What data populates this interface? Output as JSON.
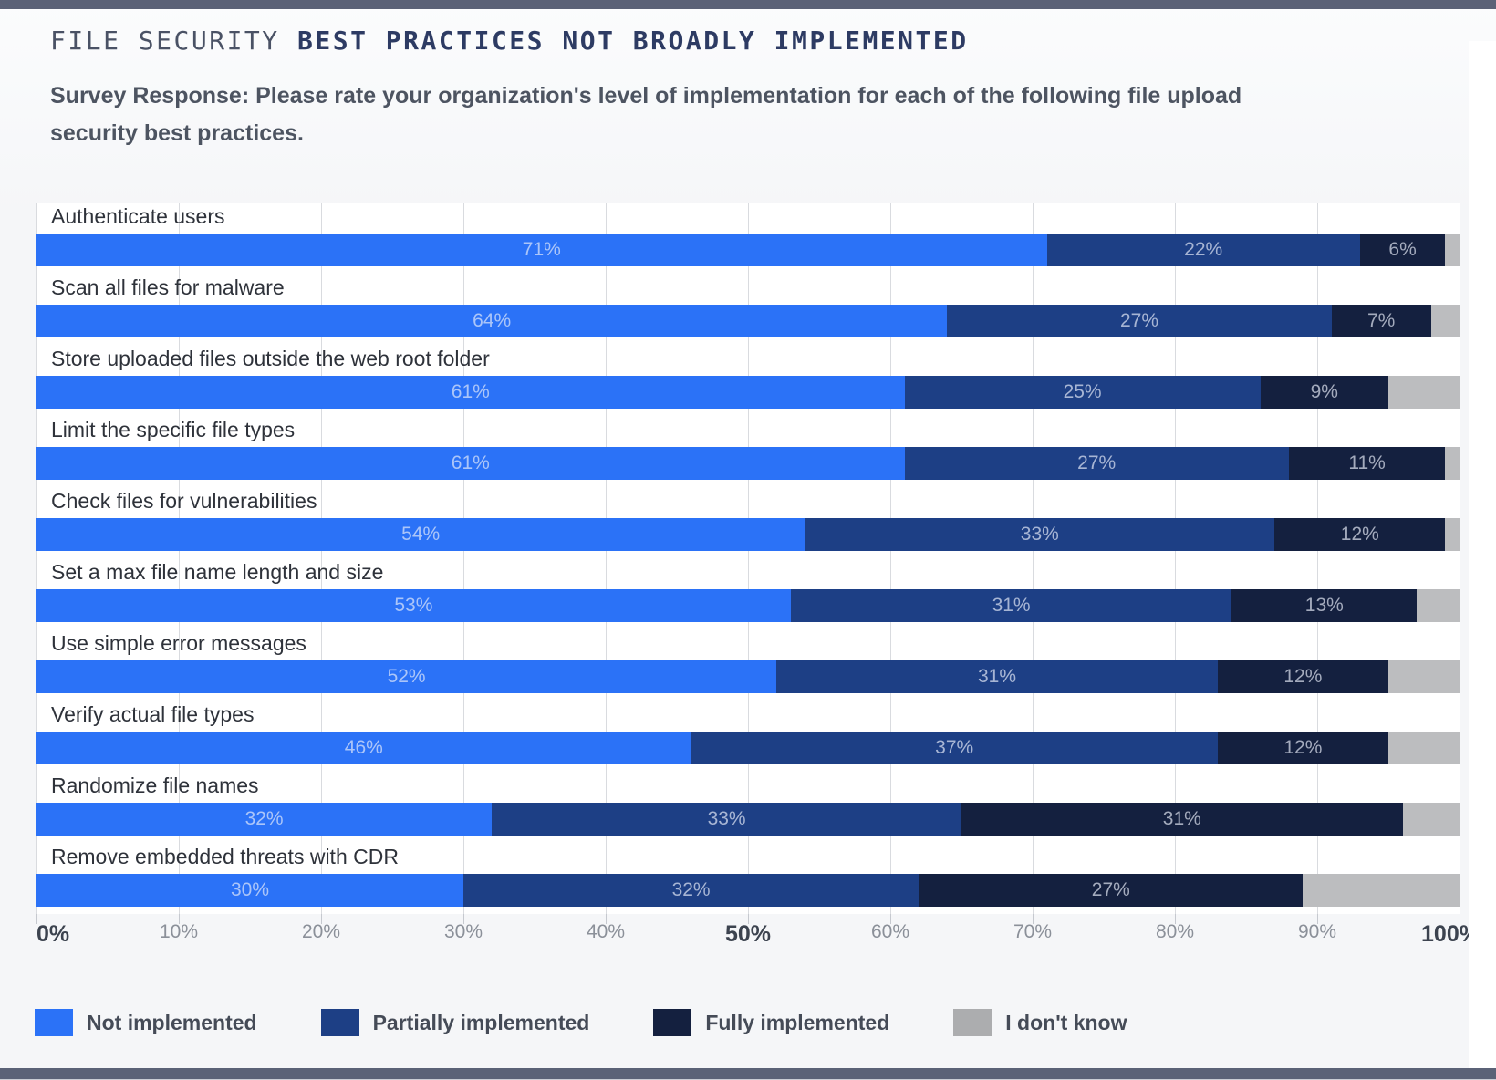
{
  "page": {
    "title_regular": "FILE SECURITY ",
    "title_bold": "BEST PRACTICES NOT BROADLY IMPLEMENTED",
    "subtitle_line1": "Survey Response: Please rate your organization's level of implementation for each of the following file upload",
    "subtitle_line2": "security best practices."
  },
  "chart_data": {
    "type": "bar",
    "orientation": "horizontal",
    "stacked": true,
    "title": "FILE SECURITY BEST PRACTICES NOT BROADLY IMPLEMENTED",
    "subtitle": "Survey Response: Please rate your organization's level of implementation for each of the following file upload security best practices.",
    "xlim": [
      0,
      100
    ],
    "grid": "vertical",
    "legend_position": "bottom",
    "value_suffix": "%",
    "categories": [
      "Authenticate users",
      "Scan all files for malware",
      "Store uploaded files outside the web root folder",
      "Limit the specific file types",
      "Check files for vulnerabilities",
      "Set a max file name length and size",
      "Use simple error messages",
      "Verify actual file types",
      "Randomize file names",
      "Remove embedded threats with CDR"
    ],
    "series": [
      {
        "name": "Not implemented",
        "color": "#2b72f7",
        "show_labels": true,
        "values": [
          71,
          64,
          61,
          61,
          54,
          53,
          52,
          46,
          32,
          30
        ]
      },
      {
        "name": "Partially implemented",
        "color": "#1d3f85",
        "show_labels": true,
        "values": [
          22,
          27,
          25,
          27,
          33,
          31,
          31,
          37,
          33,
          32
        ]
      },
      {
        "name": "Fully implemented",
        "color": "#14203f",
        "show_labels": true,
        "values": [
          6,
          7,
          9,
          11,
          12,
          13,
          12,
          12,
          31,
          27
        ]
      },
      {
        "name": "I don't know",
        "color": "#bcbdbf",
        "show_labels": false,
        "values": [
          1,
          2,
          5,
          1,
          1,
          3,
          5,
          5,
          4,
          11
        ]
      }
    ],
    "x_ticks": [
      "0%",
      "10%",
      "20%",
      "30%",
      "40%",
      "50%",
      "60%",
      "70%",
      "80%",
      "90%",
      "100%"
    ],
    "bold_ticks": [
      "0%",
      "50%",
      "100%"
    ]
  },
  "legend": {
    "items": [
      {
        "label": "Not implemented",
        "color": "#2b72f7"
      },
      {
        "label": "Partially implemented",
        "color": "#1d3f85"
      },
      {
        "label": "Fully implemented",
        "color": "#14203f"
      },
      {
        "label": "I don't know",
        "color": "#acadaf"
      }
    ]
  }
}
